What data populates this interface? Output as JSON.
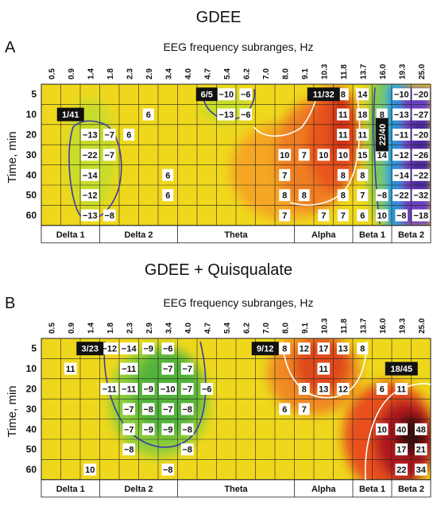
{
  "panels": [
    {
      "letter": "A",
      "title": "GDEE",
      "subtitle": "EEG frequency subranges, Hz",
      "ylabel": "Time, min"
    },
    {
      "letter": "B",
      "title": "GDEE + Quisqualate",
      "subtitle": "EEG frequency subranges, Hz",
      "ylabel": "Time, min"
    }
  ],
  "chart_data": [
    {
      "type": "heatmap",
      "title": "GDEE",
      "xlabel": "EEG frequency subranges, Hz",
      "ylabel": "Time, min",
      "x": [
        "0.5",
        "0.9",
        "1.4",
        "1.8",
        "2.3",
        "2.9",
        "3.4",
        "4.0",
        "4.7",
        "5.4",
        "6.2",
        "7.0",
        "8.0",
        "9.1",
        "10.3",
        "11.8",
        "13.7",
        "16.0",
        "19.3",
        "25.0"
      ],
      "y": [
        "5",
        "10",
        "20",
        "30",
        "40",
        "50",
        "60"
      ],
      "bands": [
        "Delta 1",
        "Delta 2",
        "Theta",
        "Alpha",
        "Beta 1",
        "Beta 2"
      ],
      "cells": [
        {
          "t": "5",
          "f": "5.4",
          "v": "−10"
        },
        {
          "t": "5",
          "f": "6.2",
          "v": "−6"
        },
        {
          "t": "5",
          "f": "11.8",
          "v": "8"
        },
        {
          "t": "5",
          "f": "13.7",
          "v": "14"
        },
        {
          "t": "5",
          "f": "19.3",
          "v": "−10"
        },
        {
          "t": "5",
          "f": "25.0",
          "v": "−20"
        },
        {
          "t": "10",
          "f": "2.9",
          "v": "6"
        },
        {
          "t": "10",
          "f": "5.4",
          "v": "−13"
        },
        {
          "t": "10",
          "f": "6.2",
          "v": "−6"
        },
        {
          "t": "10",
          "f": "11.8",
          "v": "11"
        },
        {
          "t": "10",
          "f": "13.7",
          "v": "18"
        },
        {
          "t": "10",
          "f": "16.0",
          "v": "8"
        },
        {
          "t": "10",
          "f": "19.3",
          "v": "−13"
        },
        {
          "t": "10",
          "f": "25.0",
          "v": "−27"
        },
        {
          "t": "20",
          "f": "1.4",
          "v": "−13"
        },
        {
          "t": "20",
          "f": "1.8",
          "v": "−7"
        },
        {
          "t": "20",
          "f": "2.3",
          "v": "6"
        },
        {
          "t": "20",
          "f": "11.8",
          "v": "11"
        },
        {
          "t": "20",
          "f": "13.7",
          "v": "11"
        },
        {
          "t": "20",
          "f": "19.3",
          "v": "−11"
        },
        {
          "t": "20",
          "f": "25.0",
          "v": "−20"
        },
        {
          "t": "30",
          "f": "1.4",
          "v": "−22"
        },
        {
          "t": "30",
          "f": "1.8",
          "v": "−7"
        },
        {
          "t": "30",
          "f": "8.0",
          "v": "10"
        },
        {
          "t": "30",
          "f": "9.1",
          "v": "7"
        },
        {
          "t": "30",
          "f": "10.3",
          "v": "10"
        },
        {
          "t": "30",
          "f": "11.8",
          "v": "10"
        },
        {
          "t": "30",
          "f": "13.7",
          "v": "15"
        },
        {
          "t": "30",
          "f": "16.0",
          "v": "14"
        },
        {
          "t": "30",
          "f": "19.3",
          "v": "−12"
        },
        {
          "t": "30",
          "f": "25.0",
          "v": "−26"
        },
        {
          "t": "40",
          "f": "1.4",
          "v": "−14"
        },
        {
          "t": "40",
          "f": "3.4",
          "v": "6"
        },
        {
          "t": "40",
          "f": "8.0",
          "v": "7"
        },
        {
          "t": "40",
          "f": "11.8",
          "v": "8"
        },
        {
          "t": "40",
          "f": "13.7",
          "v": "8"
        },
        {
          "t": "40",
          "f": "19.3",
          "v": "−14"
        },
        {
          "t": "40",
          "f": "25.0",
          "v": "−22"
        },
        {
          "t": "50",
          "f": "1.4",
          "v": "−12"
        },
        {
          "t": "50",
          "f": "3.4",
          "v": "6"
        },
        {
          "t": "50",
          "f": "8.0",
          "v": "8"
        },
        {
          "t": "50",
          "f": "9.1",
          "v": "8"
        },
        {
          "t": "50",
          "f": "11.8",
          "v": "8"
        },
        {
          "t": "50",
          "f": "13.7",
          "v": "7"
        },
        {
          "t": "50",
          "f": "16.0",
          "v": "−8"
        },
        {
          "t": "50",
          "f": "19.3",
          "v": "−22"
        },
        {
          "t": "50",
          "f": "25.0",
          "v": "−32"
        },
        {
          "t": "60",
          "f": "1.4",
          "v": "−13"
        },
        {
          "t": "60",
          "f": "1.8",
          "v": "−8"
        },
        {
          "t": "60",
          "f": "8.0",
          "v": "7"
        },
        {
          "t": "60",
          "f": "10.3",
          "v": "7"
        },
        {
          "t": "60",
          "f": "11.8",
          "v": "7"
        },
        {
          "t": "60",
          "f": "13.7",
          "v": "6"
        },
        {
          "t": "60",
          "f": "16.0",
          "v": "10"
        },
        {
          "t": "60",
          "f": "19.3",
          "v": "−8"
        },
        {
          "t": "60",
          "f": "25.0",
          "v": "−18"
        }
      ],
      "badges": [
        {
          "t": "10",
          "f": "0.9",
          "text": "1/41"
        },
        {
          "t": "5",
          "f": "4.7",
          "text": "6/5"
        },
        {
          "t": "5",
          "f": "10.3",
          "text": "11/32"
        },
        {
          "t": "25",
          "f": "16.0",
          "text": "22/40",
          "vertical": true
        }
      ]
    },
    {
      "type": "heatmap",
      "title": "GDEE + Quisqualate",
      "xlabel": "EEG frequency subranges, Hz",
      "ylabel": "Time, min",
      "x": [
        "0.5",
        "0.9",
        "1.4",
        "1.8",
        "2.3",
        "2.9",
        "3.4",
        "4.0",
        "4.7",
        "5.4",
        "6.2",
        "7.0",
        "8.0",
        "9.1",
        "10.3",
        "11.8",
        "13.7",
        "16.0",
        "19.3",
        "25.0"
      ],
      "y": [
        "5",
        "10",
        "20",
        "30",
        "40",
        "50",
        "60"
      ],
      "bands": [
        "Delta 1",
        "Delta 2",
        "Theta",
        "Alpha",
        "Beta 1",
        "Beta 2"
      ],
      "cells": [
        {
          "t": "5",
          "f": "1.8",
          "v": "−12"
        },
        {
          "t": "5",
          "f": "2.3",
          "v": "−14"
        },
        {
          "t": "5",
          "f": "2.9",
          "v": "−9"
        },
        {
          "t": "5",
          "f": "3.4",
          "v": "−6"
        },
        {
          "t": "5",
          "f": "8.0",
          "v": "8"
        },
        {
          "t": "5",
          "f": "9.1",
          "v": "12"
        },
        {
          "t": "5",
          "f": "10.3",
          "v": "17"
        },
        {
          "t": "5",
          "f": "11.8",
          "v": "13"
        },
        {
          "t": "5",
          "f": "13.7",
          "v": "8"
        },
        {
          "t": "10",
          "f": "0.9",
          "v": "11"
        },
        {
          "t": "10",
          "f": "2.3",
          "v": "−11"
        },
        {
          "t": "10",
          "f": "3.4",
          "v": "−7"
        },
        {
          "t": "10",
          "f": "4.0",
          "v": "−7"
        },
        {
          "t": "10",
          "f": "10.3",
          "v": "11"
        },
        {
          "t": "20",
          "f": "1.8",
          "v": "−11"
        },
        {
          "t": "20",
          "f": "2.3",
          "v": "−11"
        },
        {
          "t": "20",
          "f": "2.9",
          "v": "−9"
        },
        {
          "t": "20",
          "f": "3.4",
          "v": "−10"
        },
        {
          "t": "20",
          "f": "4.0",
          "v": "−7"
        },
        {
          "t": "20",
          "f": "4.7",
          "v": "−6"
        },
        {
          "t": "20",
          "f": "9.1",
          "v": "8"
        },
        {
          "t": "20",
          "f": "10.3",
          "v": "13"
        },
        {
          "t": "20",
          "f": "11.8",
          "v": "12"
        },
        {
          "t": "20",
          "f": "16.0",
          "v": "6"
        },
        {
          "t": "20",
          "f": "19.3",
          "v": "11"
        },
        {
          "t": "30",
          "f": "2.3",
          "v": "−7"
        },
        {
          "t": "30",
          "f": "2.9",
          "v": "−8"
        },
        {
          "t": "30",
          "f": "3.4",
          "v": "−7"
        },
        {
          "t": "30",
          "f": "4.0",
          "v": "−8"
        },
        {
          "t": "30",
          "f": "8.0",
          "v": "6"
        },
        {
          "t": "30",
          "f": "9.1",
          "v": "7"
        },
        {
          "t": "40",
          "f": "2.3",
          "v": "−7"
        },
        {
          "t": "40",
          "f": "2.9",
          "v": "−9"
        },
        {
          "t": "40",
          "f": "3.4",
          "v": "−9"
        },
        {
          "t": "40",
          "f": "4.0",
          "v": "−8"
        },
        {
          "t": "40",
          "f": "16.0",
          "v": "10"
        },
        {
          "t": "40",
          "f": "19.3",
          "v": "40"
        },
        {
          "t": "40",
          "f": "25.0",
          "v": "48"
        },
        {
          "t": "50",
          "f": "2.3",
          "v": "−8"
        },
        {
          "t": "50",
          "f": "4.0",
          "v": "−8"
        },
        {
          "t": "50",
          "f": "19.3",
          "v": "17"
        },
        {
          "t": "50",
          "f": "25.0",
          "v": "21"
        },
        {
          "t": "60",
          "f": "1.4",
          "v": "10"
        },
        {
          "t": "60",
          "f": "3.4",
          "v": "−8"
        },
        {
          "t": "60",
          "f": "19.3",
          "v": "22"
        },
        {
          "t": "60",
          "f": "25.0",
          "v": "34"
        }
      ],
      "badges": [
        {
          "t": "5",
          "f": "1.4",
          "text": "3/23"
        },
        {
          "t": "5",
          "f": "7.0",
          "text": "9/12"
        },
        {
          "t": "10",
          "f": "19.3",
          "text": "18/45"
        }
      ]
    }
  ]
}
